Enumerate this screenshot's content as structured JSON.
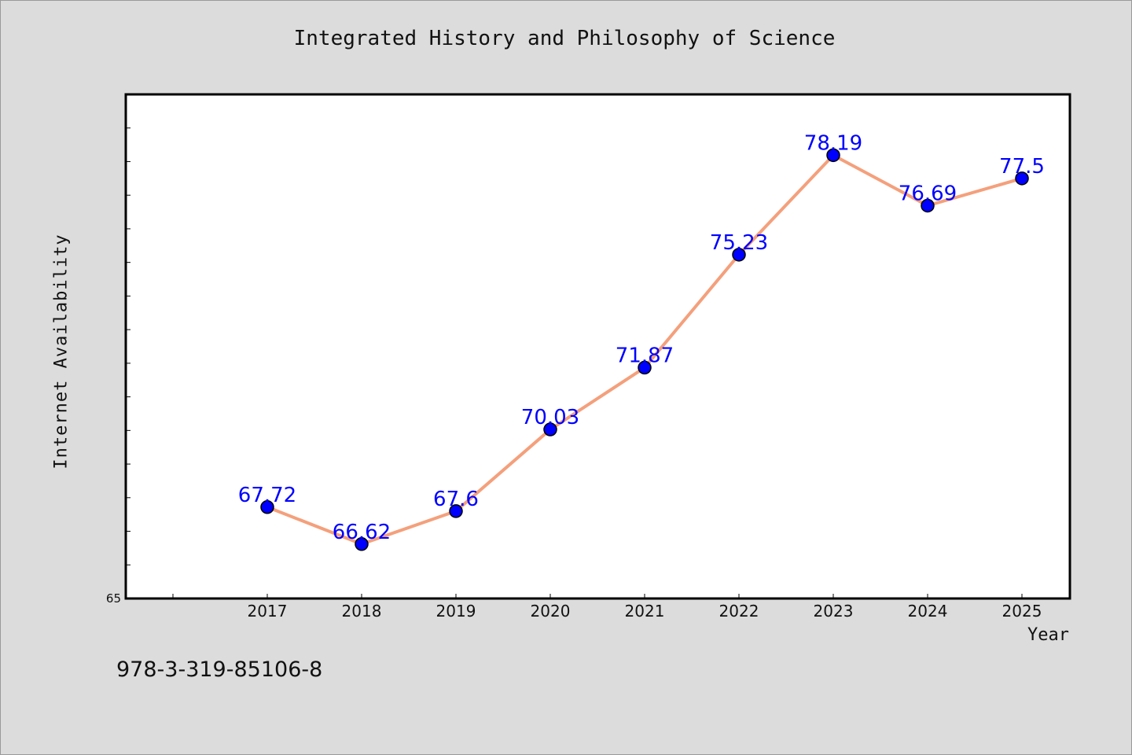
{
  "chart_data": {
    "type": "line",
    "title": "Integrated History and Philosophy of Science",
    "xlabel": "Year",
    "ylabel": "Internet Availability",
    "categories": [
      "2017",
      "2018",
      "2019",
      "2020",
      "2021",
      "2022",
      "2023",
      "2024",
      "2025"
    ],
    "series": [
      {
        "values": [
          67.72,
          66.62,
          67.6,
          70.03,
          71.87,
          75.23,
          78.19,
          76.69,
          77.5
        ],
        "labels": [
          "67.72",
          "66.62",
          "67.6",
          "70.03",
          "71.87",
          "75.23",
          "78.19",
          "76.69",
          "77.5"
        ],
        "line_color": "#f4a07c",
        "marker_color": "#0000ff",
        "label_color": "#0000ff"
      }
    ],
    "ylim": [
      65,
      80
    ],
    "ytick_labels": [
      "65"
    ],
    "grid": false,
    "legend": "none"
  },
  "footnote": "978-3-319-85106-8"
}
